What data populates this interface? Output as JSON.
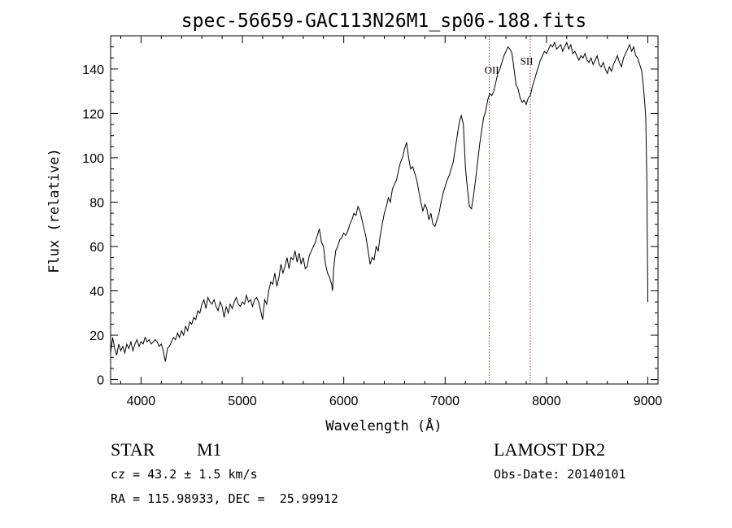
{
  "chart_data": {
    "type": "line",
    "title": "spec-56659-GAC113N26M1_sp06-188.fits",
    "xlabel": "Wavelength (Å)",
    "ylabel": "Flux (relative)",
    "xlim": [
      3700,
      9100
    ],
    "ylim": [
      -2,
      155
    ],
    "xticks": [
      4000,
      5000,
      6000,
      7000,
      8000,
      9000
    ],
    "yticks": [
      0,
      20,
      40,
      60,
      80,
      100,
      120,
      140
    ],
    "grid": false,
    "series": [
      {
        "x": [
          3700,
          3720,
          3740,
          3760,
          3780,
          3800,
          3820,
          3840,
          3860,
          3880,
          3900,
          3920,
          3940,
          3960,
          3980,
          4000,
          4020,
          4040,
          4060,
          4080,
          4100,
          4120,
          4140,
          4160,
          4180,
          4200,
          4220,
          4240,
          4260,
          4280,
          4300,
          4320,
          4340,
          4360,
          4380,
          4400,
          4420,
          4440,
          4460,
          4480,
          4500,
          4520,
          4540,
          4560,
          4580,
          4600,
          4620,
          4640,
          4660,
          4680,
          4700,
          4720,
          4740,
          4760,
          4780,
          4800,
          4820,
          4840,
          4860,
          4880,
          4900,
          4920,
          4940,
          4960,
          4980,
          5000,
          5020,
          5040,
          5060,
          5080,
          5100,
          5120,
          5140,
          5160,
          5180,
          5200,
          5220,
          5240,
          5260,
          5280,
          5300,
          5320,
          5340,
          5360,
          5380,
          5400,
          5420,
          5440,
          5460,
          5480,
          5500,
          5520,
          5540,
          5560,
          5580,
          5600,
          5620,
          5640,
          5660,
          5680,
          5700,
          5720,
          5740,
          5760,
          5780,
          5800,
          5820,
          5840,
          5860,
          5880,
          5890,
          5900,
          5920,
          5940,
          5960,
          5980,
          6000,
          6020,
          6040,
          6060,
          6080,
          6100,
          6120,
          6140,
          6160,
          6180,
          6200,
          6220,
          6240,
          6260,
          6280,
          6300,
          6320,
          6340,
          6360,
          6380,
          6400,
          6420,
          6440,
          6460,
          6480,
          6500,
          6520,
          6540,
          6560,
          6580,
          6600,
          6620,
          6640,
          6660,
          6680,
          6700,
          6720,
          6740,
          6760,
          6780,
          6800,
          6820,
          6840,
          6860,
          6880,
          6900,
          6920,
          6940,
          6960,
          6980,
          7000,
          7020,
          7040,
          7060,
          7080,
          7100,
          7120,
          7140,
          7160,
          7180,
          7200,
          7220,
          7240,
          7260,
          7280,
          7300,
          7320,
          7340,
          7360,
          7380,
          7400,
          7420,
          7440,
          7460,
          7480,
          7500,
          7520,
          7540,
          7560,
          7580,
          7600,
          7620,
          7640,
          7660,
          7680,
          7700,
          7720,
          7740,
          7760,
          7780,
          7800,
          7820,
          7840,
          7860,
          7880,
          7900,
          7920,
          7940,
          7960,
          7980,
          8000,
          8020,
          8040,
          8060,
          8080,
          8100,
          8120,
          8140,
          8160,
          8180,
          8200,
          8220,
          8240,
          8260,
          8280,
          8300,
          8320,
          8340,
          8360,
          8380,
          8400,
          8420,
          8440,
          8460,
          8480,
          8500,
          8520,
          8540,
          8560,
          8580,
          8600,
          8620,
          8640,
          8660,
          8680,
          8700,
          8720,
          8740,
          8760,
          8780,
          8800,
          8820,
          8840,
          8860,
          8880,
          8900,
          8920,
          8940,
          8960,
          8980,
          8990,
          9000
        ],
        "y": [
          12,
          19,
          14,
          11,
          16,
          13,
          15,
          12,
          16,
          14,
          17,
          13,
          16,
          18,
          15,
          17,
          16,
          19,
          17,
          18,
          16,
          17,
          18,
          17,
          15,
          16,
          13,
          8,
          14,
          15,
          17,
          19,
          18,
          21,
          19,
          22,
          20,
          24,
          22,
          26,
          25,
          28,
          27,
          31,
          30,
          34,
          36,
          32,
          37,
          35,
          34,
          36,
          33,
          31,
          35,
          33,
          28,
          33,
          30,
          34,
          32,
          35,
          37,
          34,
          33,
          35,
          34,
          38,
          35,
          36,
          33,
          36,
          37,
          35,
          31,
          27,
          36,
          34,
          40,
          44,
          43,
          48,
          42,
          46,
          52,
          48,
          51,
          55,
          50,
          55,
          54,
          58,
          53,
          57,
          52,
          55,
          50,
          51,
          56,
          58,
          60,
          62,
          65,
          68,
          62,
          60,
          52,
          48,
          46,
          43,
          40,
          50,
          58,
          60,
          63,
          64,
          66,
          65,
          67,
          70,
          72,
          75,
          74,
          78,
          76,
          72,
          68,
          64,
          58,
          52,
          55,
          54,
          60,
          58,
          65,
          70,
          75,
          78,
          82,
          80,
          86,
          88,
          90,
          94,
          98,
          100,
          104,
          107,
          100,
          95,
          96,
          93,
          90,
          85,
          80,
          76,
          79,
          77,
          72,
          75,
          70,
          69,
          72,
          75,
          80,
          84,
          87,
          90,
          92,
          95,
          98,
          104,
          110,
          116,
          119,
          115,
          96,
          86,
          78,
          77,
          83,
          90,
          98,
          106,
          112,
          118,
          121,
          126,
          129,
          128,
          130,
          134,
          138,
          140,
          143,
          146,
          148,
          150,
          149,
          147,
          140,
          133,
          131,
          127,
          125,
          126,
          124,
          127,
          128,
          132,
          135,
          138,
          141,
          144,
          146,
          148,
          147,
          149,
          151,
          150,
          152,
          149,
          150,
          151,
          148,
          150,
          152,
          149,
          151,
          147,
          148,
          146,
          144,
          146,
          145,
          147,
          144,
          143,
          145,
          142,
          144,
          146,
          142,
          141,
          143,
          140,
          138,
          141,
          139,
          142,
          144,
          146,
          143,
          141,
          145,
          147,
          149,
          151,
          148,
          150,
          146,
          145,
          142,
          139,
          130,
          118,
          90,
          35
        ]
      }
    ],
    "annotations": [
      {
        "label": "OII",
        "x": 7435,
        "text_x": 7460,
        "text_y": 138
      },
      {
        "label": "SII",
        "x": 7840,
        "text_x": 7805,
        "text_y": 142
      }
    ]
  },
  "info": {
    "object_class": "STAR",
    "subclass": "M1",
    "survey": "LAMOST DR2",
    "redshift": "cz = 43.2 ± 1.5 km/s",
    "obs_date": "Obs-Date: 20140101",
    "coords": "RA = 115.98933, DEC =  25.99912"
  }
}
